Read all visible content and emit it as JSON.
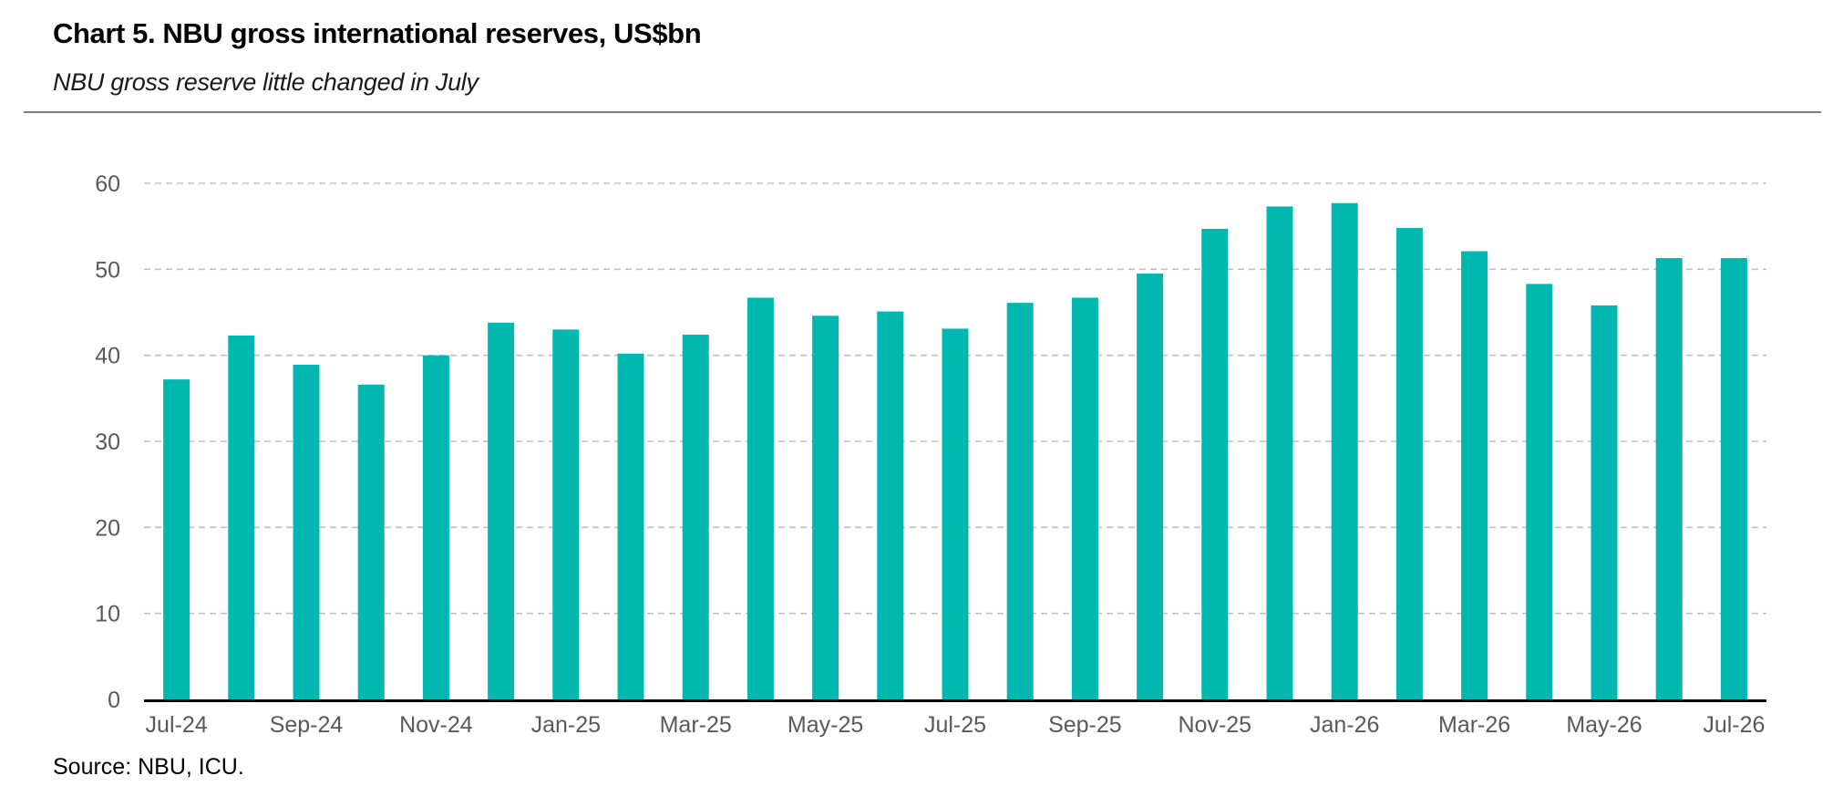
{
  "header": {
    "title": "Chart 5. NBU gross international reserves, US$bn",
    "subtitle": "NBU gross reserve little changed in July"
  },
  "footer": {
    "source": "Source: NBU, ICU."
  },
  "colors": {
    "bar": "#00B8B0",
    "grid": "#BFBFBF",
    "axis": "#000000",
    "tick_label": "#595959"
  },
  "chart_data": {
    "type": "bar",
    "title": "Chart 5. NBU gross international reserves, US$bn",
    "subtitle": "NBU gross reserve little changed in July",
    "xlabel": "",
    "ylabel": "",
    "ylim": [
      0,
      60
    ],
    "yticks": [
      0,
      10,
      20,
      30,
      40,
      50,
      60
    ],
    "grid": true,
    "legend": "none",
    "categories": [
      "Jul-24",
      "Aug-24",
      "Sep-24",
      "Oct-24",
      "Nov-24",
      "Dec-24",
      "Jan-25",
      "Feb-25",
      "Mar-25",
      "Apr-25",
      "May-25",
      "Jun-25",
      "Jul-25",
      "Aug-25",
      "Sep-25",
      "Oct-25",
      "Nov-25",
      "Dec-25",
      "Jan-26",
      "Feb-26",
      "Mar-26",
      "Apr-26",
      "May-26",
      "Jun-26",
      "Jul-26"
    ],
    "x_tick_labels": [
      "Jul-24",
      "",
      "Sep-24",
      "",
      "Nov-24",
      "",
      "Jan-25",
      "",
      "Mar-25",
      "",
      "May-25",
      "",
      "Jul-25",
      "",
      "Sep-25",
      "",
      "Nov-25",
      "",
      "Jan-26",
      "",
      "Mar-26",
      "",
      "May-26",
      "",
      "Jul-26"
    ],
    "values": [
      37.2,
      42.3,
      38.9,
      36.6,
      40.0,
      43.8,
      43.0,
      40.2,
      42.4,
      46.7,
      44.6,
      45.1,
      43.1,
      46.1,
      46.7,
      49.5,
      54.7,
      57.3,
      57.7,
      54.8,
      52.1,
      48.3,
      45.8,
      51.3,
      51.3
    ]
  }
}
